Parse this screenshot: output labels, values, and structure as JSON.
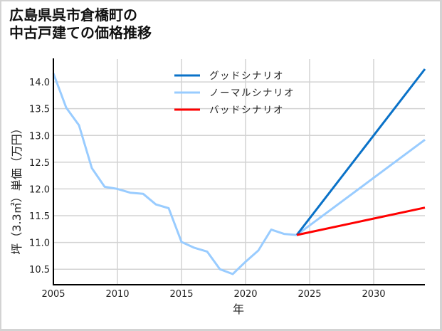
{
  "title": {
    "line1": "広島県呉市倉橋町の",
    "line2": "中古戸建ての価格推移"
  },
  "colors": {
    "good": "#0a72c8",
    "normal": "#99ccff",
    "bad": "#ff0000",
    "grid": "#d3d3d3",
    "axis": "#000000",
    "frame": "#d3d3d3"
  },
  "chart_data": {
    "type": "line",
    "title": "広島県呉市倉橋町の中古戸建ての価格推移",
    "xlabel": "年",
    "ylabel": "坪（3.3㎡）単価（万円）",
    "xlim": [
      2005,
      2034
    ],
    "ylim": [
      10.21,
      14.44
    ],
    "xticks": [
      2005,
      2010,
      2015,
      2020,
      2025,
      2030
    ],
    "yticks": [
      10.5,
      11.0,
      11.5,
      12.0,
      12.5,
      13.0,
      13.5,
      14.0
    ],
    "ytick_labels": [
      "10.5",
      "11.0",
      "11.5",
      "12.0",
      "12.5",
      "13.0",
      "13.5",
      "14.0"
    ],
    "grid": true,
    "legend_position": "upper center",
    "series": [
      {
        "name": "グッドシナリオ",
        "key": "good",
        "x": [
          2024,
          2034
        ],
        "values": [
          11.14,
          14.24
        ]
      },
      {
        "name": "ノーマルシナリオ",
        "key": "normal",
        "x": [
          2005,
          2006,
          2007,
          2008,
          2009,
          2010,
          2011,
          2012,
          2013,
          2014,
          2015,
          2016,
          2017,
          2018,
          2019,
          2020,
          2021,
          2022,
          2023,
          2024,
          2034
        ],
        "values": [
          14.16,
          13.52,
          13.19,
          12.39,
          12.04,
          12.0,
          11.93,
          11.91,
          11.71,
          11.64,
          11.01,
          10.9,
          10.83,
          10.5,
          10.41,
          10.64,
          10.85,
          11.24,
          11.16,
          11.14,
          12.92
        ]
      },
      {
        "name": "バッドシナリオ",
        "key": "bad",
        "x": [
          2024,
          2034
        ],
        "values": [
          11.14,
          11.65
        ]
      }
    ]
  }
}
